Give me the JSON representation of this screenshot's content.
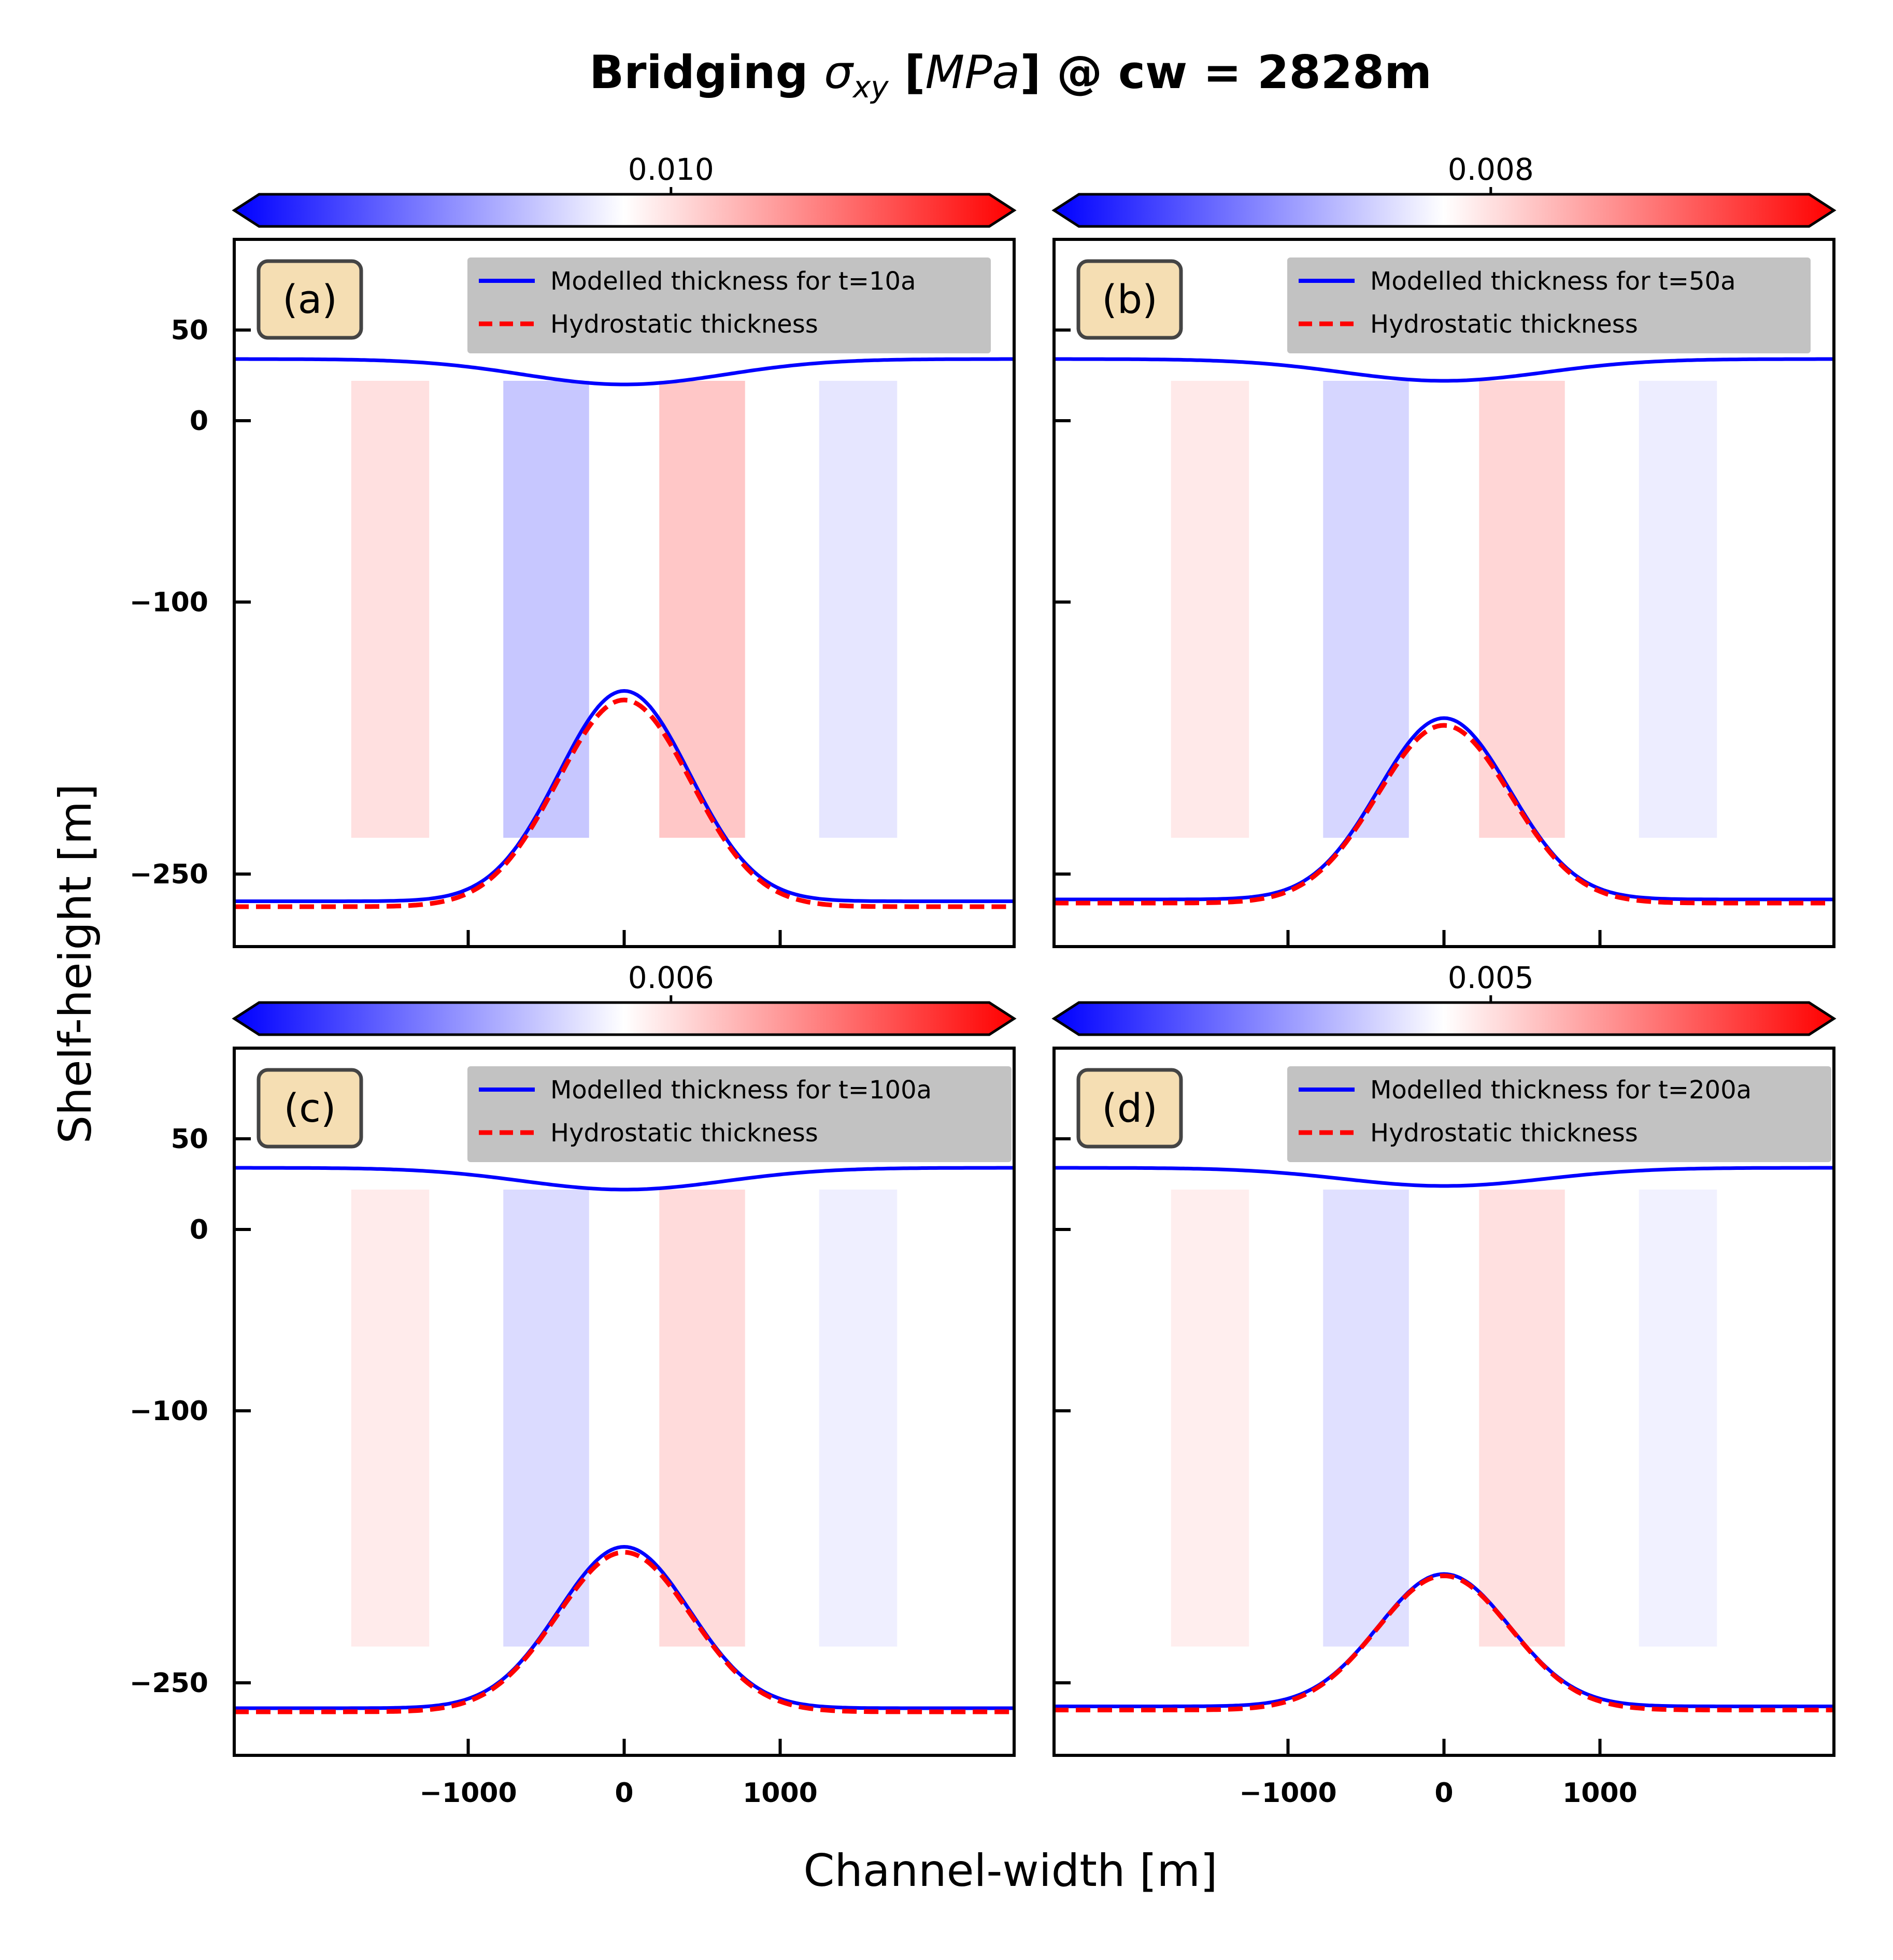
{
  "figure": {
    "title_prefix": "Bridging ",
    "title_sigma": "σ",
    "title_sub": "xy",
    "title_open": " [",
    "title_unit": "MPa",
    "title_suffix": "] @ cw = 2828m",
    "xlabel": "Channel-width [m]",
    "ylabel": "Shelf-height [m]"
  },
  "colors": {
    "modelled": "#0000ff",
    "hydrostatic": "#ff0000",
    "cmap_low": "#0000ff",
    "cmap_mid": "#ffffff",
    "cmap_high": "#ff0000",
    "label_box_fill": "#f5deb3",
    "legend_fill": "#bfbfbf"
  },
  "chart_data": [
    {
      "type": "heatmap",
      "panel_label": "(a)",
      "colorbar_tick": "0.010",
      "legend": [
        "Modelled thickness for t=10a",
        "Hydrostatic thickness"
      ],
      "xlim": [
        -2500,
        2500
      ],
      "ylim": [
        -290,
        100
      ],
      "xticks": [
        -1000,
        0,
        1000
      ],
      "yticks": [
        50,
        0,
        -100,
        -250
      ],
      "xticklabels_visible": false,
      "surface_center": 20,
      "surface_edge": 34,
      "base_edge": -265,
      "base_peak": -149,
      "hydro_peak": -154,
      "hydro_edge": -268,
      "stress_intensity": 0.22
    },
    {
      "type": "heatmap",
      "panel_label": "(b)",
      "colorbar_tick": "0.008",
      "legend": [
        "Modelled thickness for t=50a",
        "Hydrostatic thickness"
      ],
      "xlim": [
        -2500,
        2500
      ],
      "ylim": [
        -290,
        100
      ],
      "xticks": [
        -1000,
        0,
        1000
      ],
      "yticks": [
        50,
        0,
        -100,
        -250
      ],
      "xticklabels_visible": false,
      "surface_center": 22,
      "surface_edge": 34,
      "base_edge": -264,
      "base_peak": -164,
      "hydro_peak": -168,
      "hydro_edge": -266,
      "stress_intensity": 0.16
    },
    {
      "type": "heatmap",
      "panel_label": "(c)",
      "colorbar_tick": "0.006",
      "legend": [
        "Modelled thickness for t=100a",
        "Hydrostatic thickness"
      ],
      "xlim": [
        -2500,
        2500
      ],
      "ylim": [
        -290,
        100
      ],
      "xticks": [
        -1000,
        0,
        1000
      ],
      "yticks": [
        50,
        0,
        -100,
        -250
      ],
      "xticklabels_visible": true,
      "surface_center": 22,
      "surface_edge": 34,
      "base_edge": -264,
      "base_peak": -175,
      "hydro_peak": -178,
      "hydro_edge": -266,
      "stress_intensity": 0.14
    },
    {
      "type": "heatmap",
      "panel_label": "(d)",
      "colorbar_tick": "0.005",
      "legend": [
        "Modelled thickness for t=200a",
        "Hydrostatic thickness"
      ],
      "xlim": [
        -2500,
        2500
      ],
      "ylim": [
        -290,
        100
      ],
      "xticks": [
        -1000,
        0,
        1000
      ],
      "yticks": [
        50,
        0,
        -100,
        -250
      ],
      "xticklabels_visible": true,
      "surface_center": 24,
      "surface_edge": 34,
      "base_edge": -263,
      "base_peak": -190,
      "hydro_peak": -191,
      "hydro_edge": -265,
      "stress_intensity": 0.12
    }
  ]
}
